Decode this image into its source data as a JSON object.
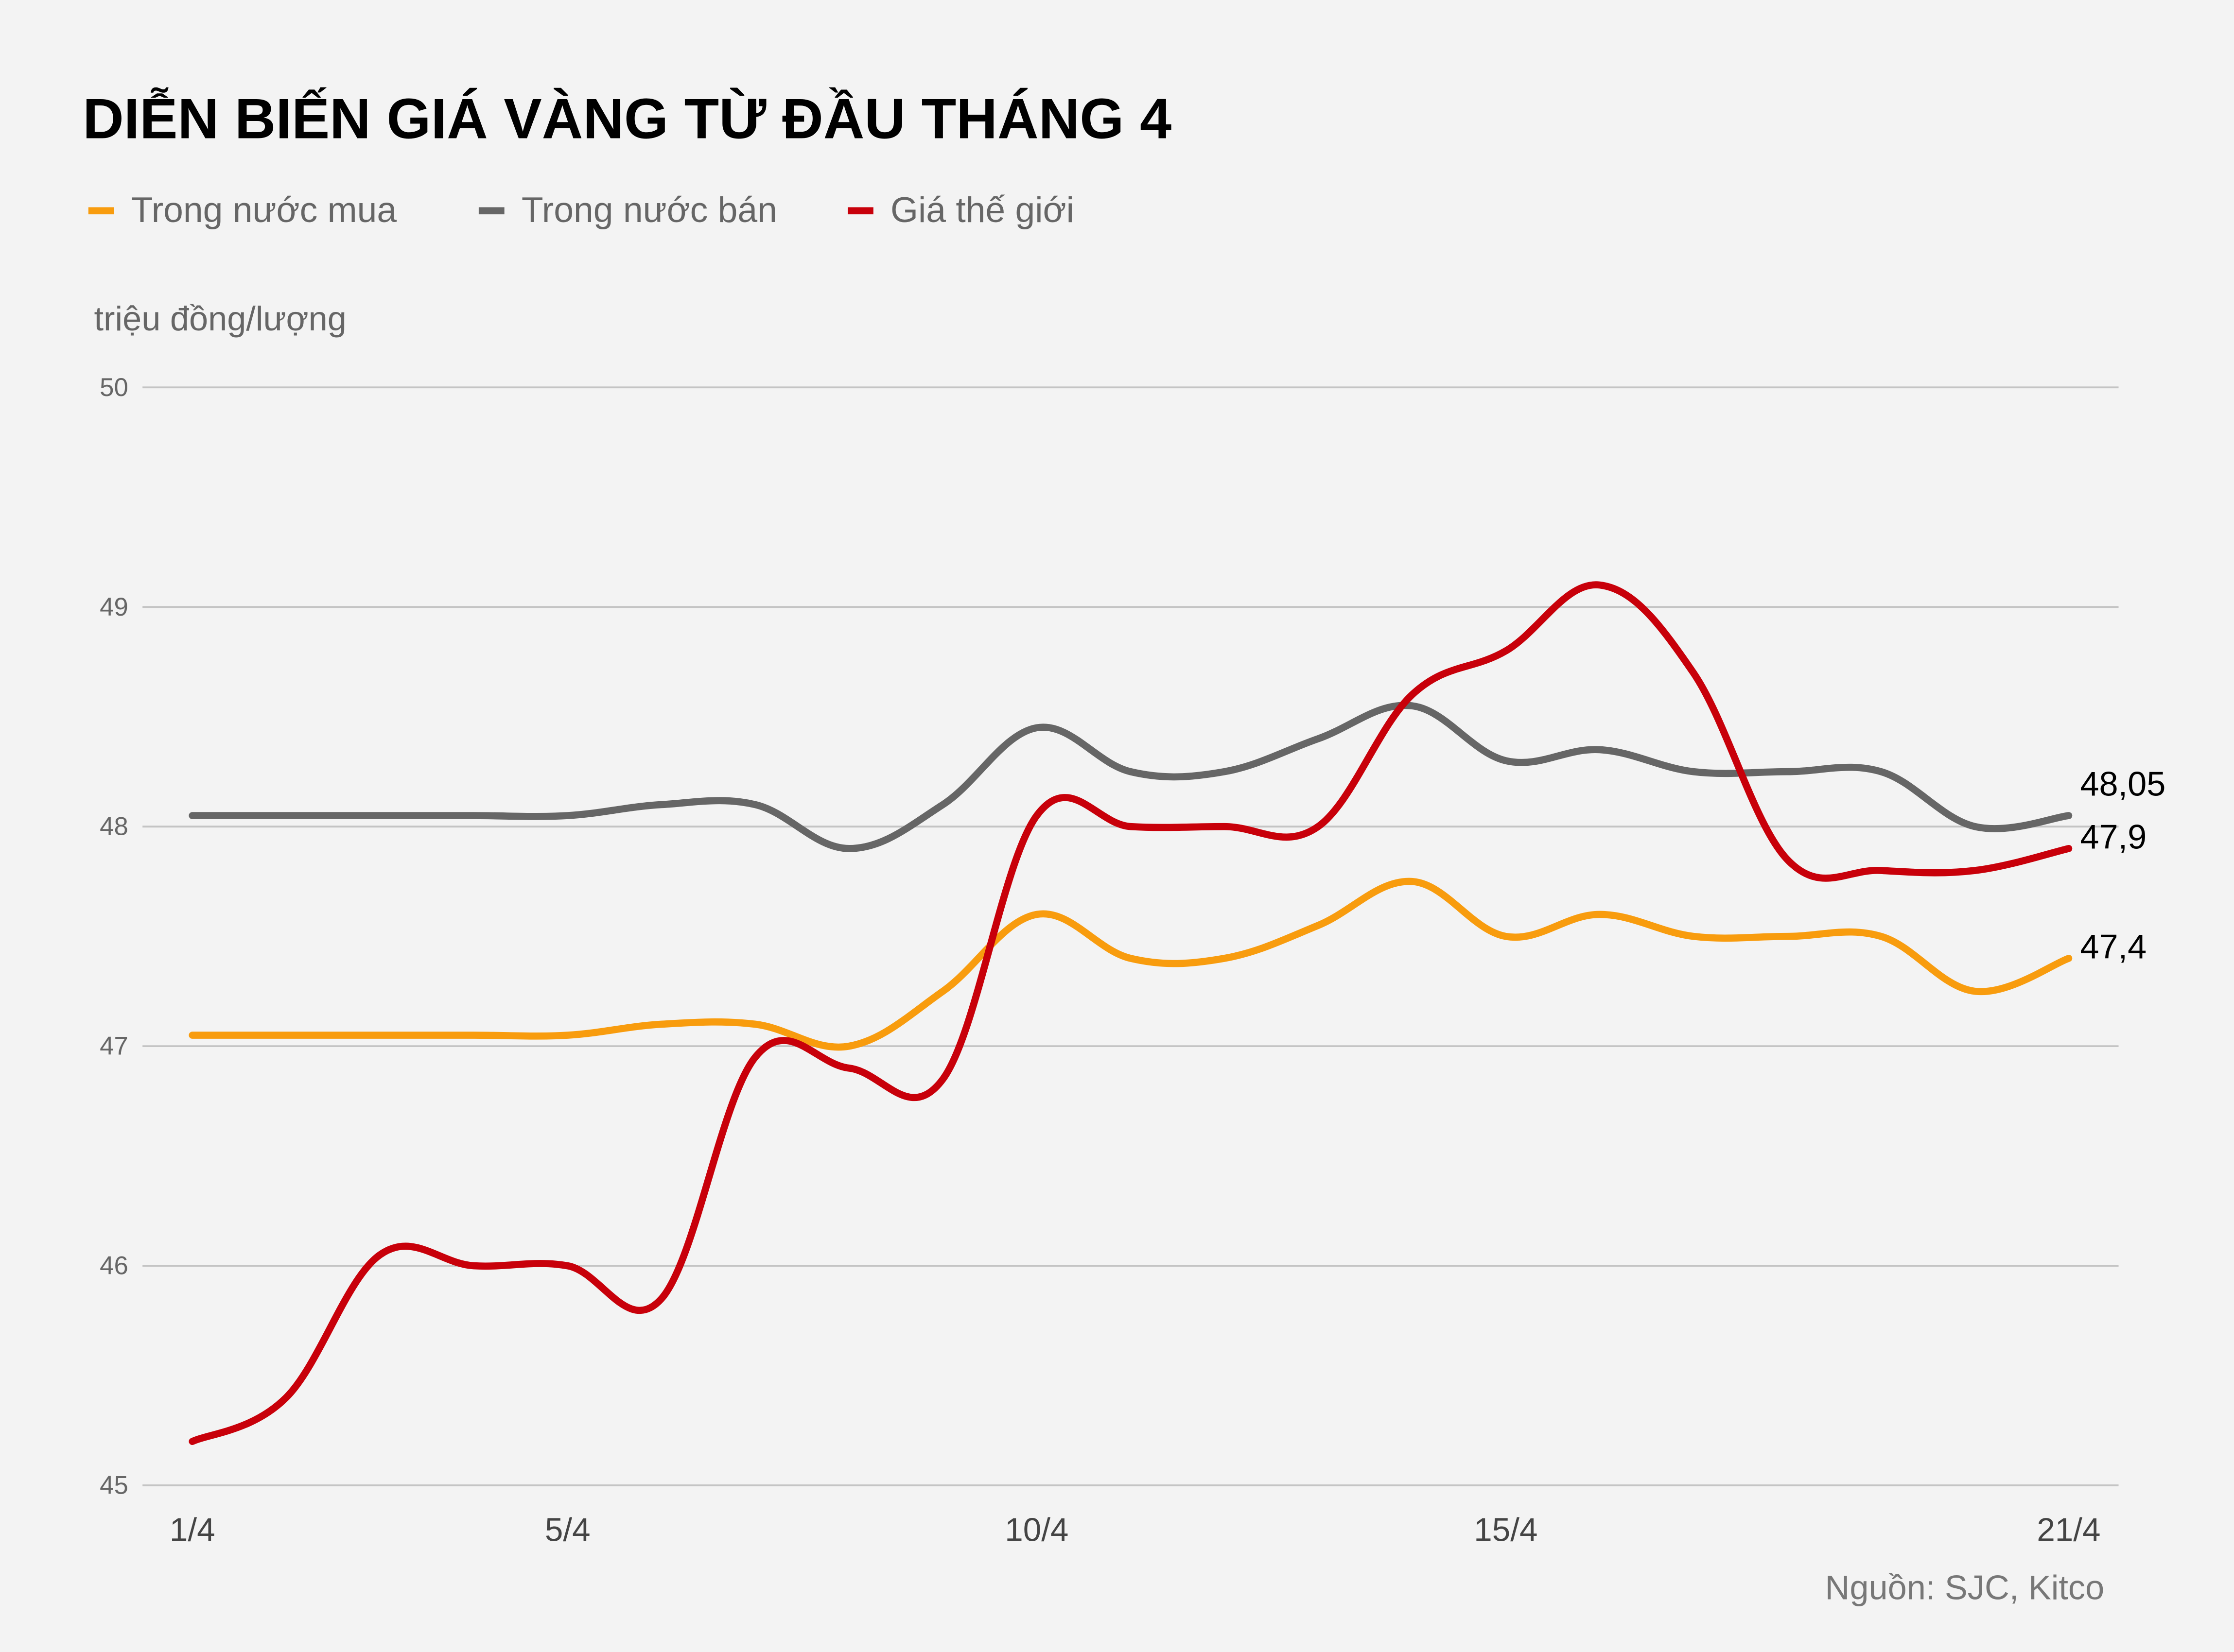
{
  "chart_data": {
    "type": "line",
    "title": "DIỄN BIẾN GIÁ VÀNG TỪ ĐẦU THÁNG 4",
    "ylabel": "triệu đồng/lượng",
    "xlabel": "",
    "source": "Nguồn: SJC, Kitco",
    "legend_position": "top-left",
    "grid": "horizontal",
    "ylim": [
      45,
      50
    ],
    "y_ticks": [
      "45",
      "46",
      "47",
      "48",
      "49",
      "50"
    ],
    "x_ticks": [
      {
        "day": 1,
        "label": "1/4"
      },
      {
        "day": 5,
        "label": "5/4"
      },
      {
        "day": 10,
        "label": "10/4"
      },
      {
        "day": 15,
        "label": "15/4"
      },
      {
        "day": 21,
        "label": "21/4"
      }
    ],
    "x": [
      1,
      2,
      3,
      4,
      5,
      6,
      7,
      8,
      9,
      10,
      11,
      12,
      13,
      14,
      15,
      16,
      17,
      18,
      19,
      20,
      21
    ],
    "series": [
      {
        "name": "Trong nước mua",
        "color": "#f89c0e",
        "end_label": "47,4",
        "values": [
          47.05,
          47.05,
          47.05,
          47.05,
          47.05,
          47.1,
          47.1,
          47.0,
          47.25,
          47.6,
          47.4,
          47.4,
          47.55,
          47.75,
          47.5,
          47.6,
          47.5,
          47.5,
          47.5,
          47.25,
          47.4
        ]
      },
      {
        "name": "Trong nước bán",
        "color": "#666666",
        "end_label": "48,05",
        "values": [
          48.05,
          48.05,
          48.05,
          48.05,
          48.05,
          48.1,
          48.1,
          47.9,
          48.1,
          48.45,
          48.25,
          48.25,
          48.4,
          48.55,
          48.3,
          48.35,
          48.25,
          48.25,
          48.25,
          48.0,
          48.05
        ]
      },
      {
        "name": "Giá thế giới",
        "color": "#c8000a",
        "end_label": "47,9",
        "values": [
          45.2,
          45.4,
          46.05,
          46.0,
          46.0,
          45.85,
          46.95,
          46.9,
          46.85,
          48.05,
          48.0,
          48.0,
          48.0,
          48.6,
          48.8,
          49.1,
          48.7,
          47.85,
          47.8,
          47.8,
          47.9
        ]
      }
    ]
  }
}
